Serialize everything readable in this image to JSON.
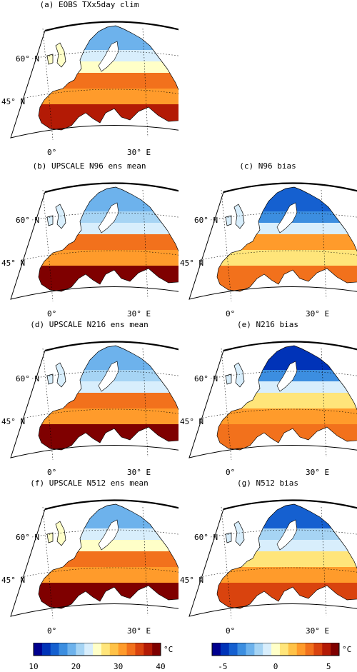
{
  "panels": [
    {
      "id": "a",
      "title": "(a) EOBS TXx5day clim",
      "type": "clim",
      "temps": [
        19,
        23,
        25,
        33,
        30,
        37
      ]
    },
    {
      "id": "b",
      "title": "(b) UPSCALE N96 ens mean",
      "type": "clim",
      "temps": [
        18,
        20,
        22,
        32,
        30,
        38
      ]
    },
    {
      "id": "c",
      "title": "(c) N96 bias",
      "type": "bias",
      "temps": [
        -4,
        -3,
        -1,
        2,
        1,
        3
      ]
    },
    {
      "id": "d",
      "title": "(d) UPSCALE N216 ens mean",
      "type": "clim",
      "temps": [
        18,
        21,
        23,
        33,
        31,
        38
      ]
    },
    {
      "id": "e",
      "title": "(e) N216 bias",
      "type": "bias",
      "temps": [
        -5,
        -3,
        -1,
        1,
        2,
        3
      ]
    },
    {
      "id": "f",
      "title": "(f) UPSCALE N512 ens mean",
      "type": "clim",
      "temps": [
        18,
        22,
        24,
        33,
        31,
        39
      ]
    },
    {
      "id": "g",
      "title": "(g) N512 bias",
      "type": "bias",
      "temps": [
        -4,
        -2,
        -1,
        1,
        2,
        4
      ]
    }
  ],
  "map_labels": {
    "lat60": "60° N",
    "lat45": "45° N",
    "lon0": "0°",
    "lon30": "30° E"
  },
  "colorbars": {
    "clim": {
      "ticks": [
        "10",
        "20",
        "30",
        "40"
      ],
      "unit": "°C",
      "range": [
        10,
        40
      ],
      "colors": [
        "#00008f",
        "#0033b8",
        "#1560d0",
        "#3c8ee0",
        "#6db2ec",
        "#a6d4f4",
        "#d8eefc",
        "#ffffc8",
        "#ffe57a",
        "#ffc247",
        "#ff9b2b",
        "#f2711c",
        "#d9430e",
        "#b31a05",
        "#7f0000"
      ]
    },
    "bias": {
      "ticks": [
        "-5",
        "0",
        "5"
      ],
      "unit": "°C",
      "range": [
        -6,
        6
      ],
      "colors": [
        "#00008f",
        "#0033b8",
        "#1560d0",
        "#3c8ee0",
        "#6db2ec",
        "#a6d4f4",
        "#d8eefc",
        "#ffffc8",
        "#ffe57a",
        "#ffc247",
        "#ff9b2b",
        "#f2711c",
        "#d9430e",
        "#b31a05",
        "#7f0000"
      ]
    }
  }
}
